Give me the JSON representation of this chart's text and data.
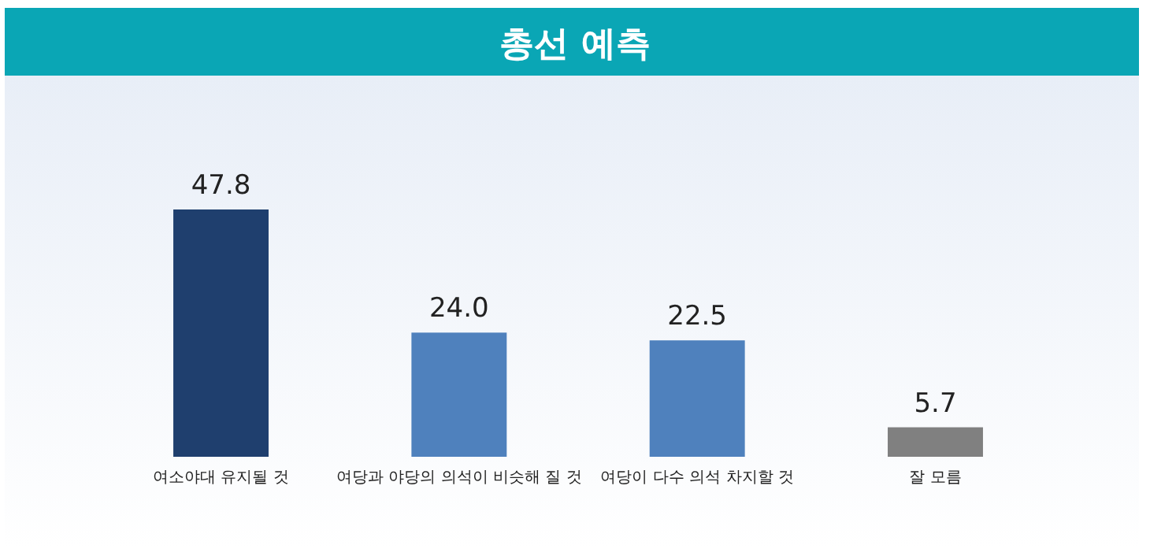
{
  "chart_data": {
    "type": "bar",
    "title": "총선 예측",
    "categories": [
      "여소야대 유지될 것",
      "여당과 야당의 의석이 비슷해 질 것",
      "여당이 다수 의석 차지할 것",
      "잘 모름"
    ],
    "values": [
      47.8,
      24.0,
      22.5,
      5.7
    ],
    "colors": [
      "#1f3f6e",
      "#4f81bd",
      "#4f81bd",
      "#808080"
    ],
    "value_labels": [
      "47.8",
      "24.0",
      "22.5",
      "5.7"
    ]
  }
}
